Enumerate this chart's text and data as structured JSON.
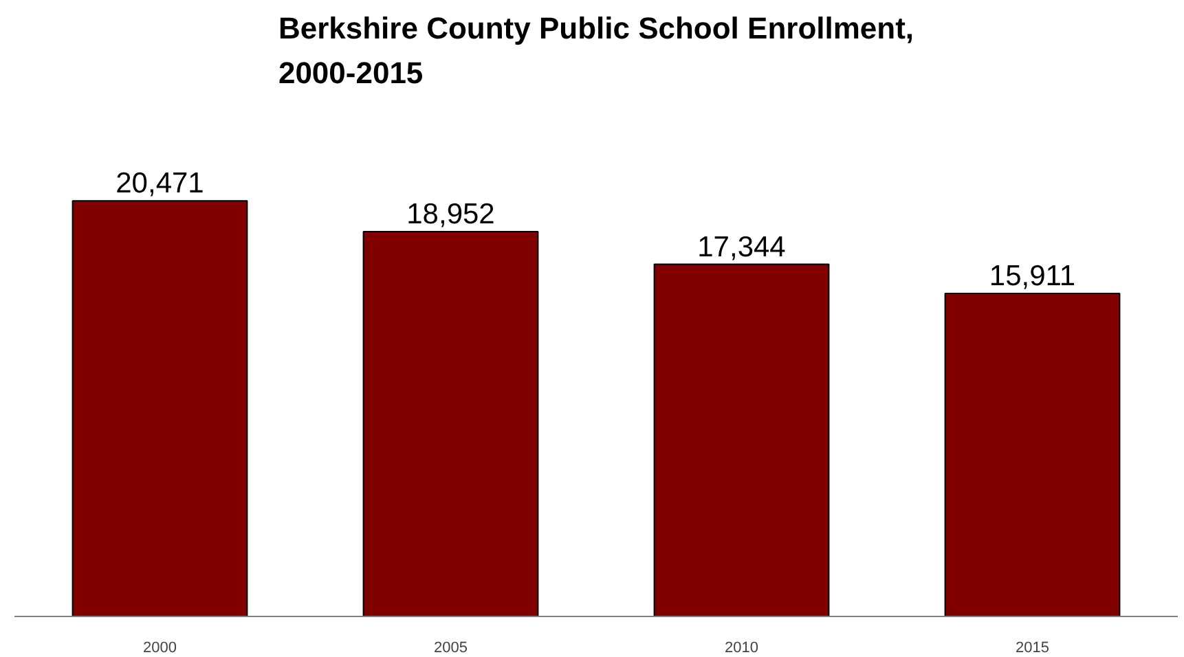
{
  "chart_data": {
    "type": "bar",
    "title": "Berkshire County Public School Enrollment, 2000-2015",
    "categories": [
      "2000",
      "2005",
      "2010",
      "2015"
    ],
    "values": [
      20471,
      18952,
      17344,
      15911
    ],
    "value_labels": [
      "20,471",
      "18,952",
      "17,344",
      "15,911"
    ],
    "color": "#800000",
    "grid": false
  }
}
